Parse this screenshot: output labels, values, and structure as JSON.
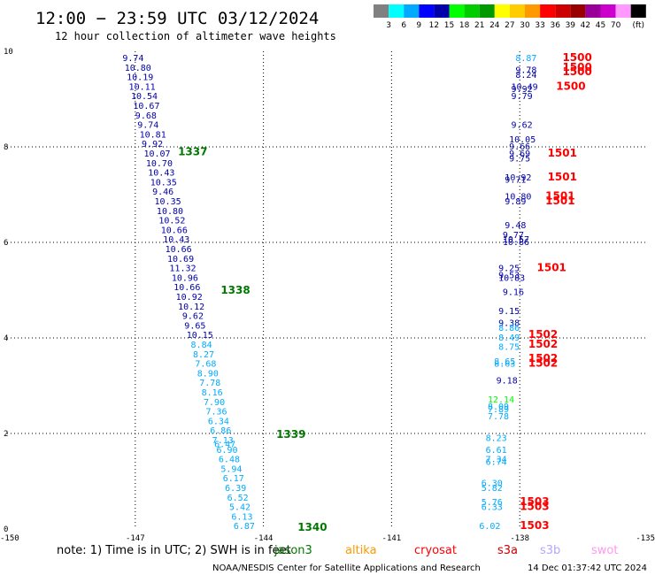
{
  "header": {
    "title": "12:00 − 23:59 UTC 03/12/2024",
    "subtitle": "12 hour collection of altimeter wave heights"
  },
  "colorbar": {
    "colors": [
      "#808080",
      "#00ffff",
      "#00aaff",
      "#0000ff",
      "#0000aa",
      "#00ff00",
      "#00cc00",
      "#009900",
      "#ffff00",
      "#ffcc00",
      "#ff9900",
      "#ff0000",
      "#cc0000",
      "#990000",
      "#990099",
      "#cc00cc",
      "#ff99ff",
      "#000000"
    ],
    "labels": [
      "3",
      "6",
      "9",
      "12",
      "15",
      "18",
      "21",
      "24",
      "27",
      "30",
      "33",
      "36",
      "39",
      "42",
      "45",
      "70"
    ],
    "unit": "(ft)"
  },
  "footer": {
    "note": "note:  1) Time is in UTC; 2) SWH is in feet",
    "credit": "NOAA/NESDIS Center for Satellite Applications and Research",
    "timestamp": "14 Dec 01:37:42 UTC 2024"
  },
  "legend": [
    {
      "name": "jason3",
      "color": "#007700"
    },
    {
      "name": "altika",
      "color": "#ff9900"
    },
    {
      "name": "cryosat",
      "color": "#ff0000"
    },
    {
      "name": "s3a",
      "color": "#cc0000"
    },
    {
      "name": "s3b",
      "color": "#b3a6ff"
    },
    {
      "name": "swot",
      "color": "#ff99ee"
    }
  ],
  "chart_data": {
    "type": "scatter",
    "xlim": [
      -150,
      -135
    ],
    "ylim": [
      0,
      10
    ],
    "x_ticks": [
      "-150",
      "-147",
      "-144",
      "-141",
      "-138",
      "-135"
    ],
    "y_ticks": [
      "0",
      "2",
      "4",
      "6",
      "8",
      "10"
    ],
    "grid": true,
    "series": [
      {
        "name": "jason3",
        "pass_labels": [
          {
            "text": "1337",
            "x": -146.0,
            "y": 7.9
          },
          {
            "text": "1338",
            "x": -145.0,
            "y": 5.0
          },
          {
            "text": "1339",
            "x": -143.7,
            "y": 1.98
          },
          {
            "text": "1340",
            "x": -143.2,
            "y": 0.04
          }
        ],
        "points": [
          {
            "x": -147.3,
            "y": 9.87,
            "v": "9.74",
            "c": "#0000aa"
          },
          {
            "x": -147.25,
            "y": 9.67,
            "v": "10.80",
            "c": "#0000aa"
          },
          {
            "x": -147.2,
            "y": 9.47,
            "v": "10.19",
            "c": "#0000aa"
          },
          {
            "x": -147.15,
            "y": 9.27,
            "v": "10.11",
            "c": "#0000aa"
          },
          {
            "x": -147.1,
            "y": 9.07,
            "v": "10.54",
            "c": "#0000aa"
          },
          {
            "x": -147.05,
            "y": 8.87,
            "v": "10.67",
            "c": "#0000aa"
          },
          {
            "x": -147.0,
            "y": 8.67,
            "v": "9.68",
            "c": "#0000aa"
          },
          {
            "x": -146.95,
            "y": 8.47,
            "v": "9.74",
            "c": "#0000aa"
          },
          {
            "x": -146.9,
            "y": 8.27,
            "v": "10.81",
            "c": "#0000aa"
          },
          {
            "x": -146.85,
            "y": 8.07,
            "v": "9.92",
            "c": "#0000aa"
          },
          {
            "x": -146.8,
            "y": 7.87,
            "v": "10.07",
            "c": "#0000aa"
          },
          {
            "x": -146.75,
            "y": 7.67,
            "v": "10.70",
            "c": "#0000aa"
          },
          {
            "x": -146.7,
            "y": 7.47,
            "v": "10.43",
            "c": "#0000aa"
          },
          {
            "x": -146.65,
            "y": 7.27,
            "v": "10.35",
            "c": "#0000aa"
          },
          {
            "x": -146.6,
            "y": 7.07,
            "v": "9.46",
            "c": "#0000aa"
          },
          {
            "x": -146.55,
            "y": 6.87,
            "v": "10.35",
            "c": "#0000aa"
          },
          {
            "x": -146.5,
            "y": 6.67,
            "v": "10.80",
            "c": "#0000aa"
          },
          {
            "x": -146.45,
            "y": 6.47,
            "v": "10.52",
            "c": "#0000aa"
          },
          {
            "x": -146.4,
            "y": 6.27,
            "v": "10.66",
            "c": "#0000aa"
          },
          {
            "x": -146.35,
            "y": 6.07,
            "v": "10.43",
            "c": "#0000aa"
          },
          {
            "x": -146.3,
            "y": 5.87,
            "v": "10.66",
            "c": "#0000aa"
          },
          {
            "x": -146.25,
            "y": 5.67,
            "v": "10.69",
            "c": "#0000aa"
          },
          {
            "x": -146.2,
            "y": 5.47,
            "v": "11.32",
            "c": "#0000aa"
          },
          {
            "x": -146.15,
            "y": 5.27,
            "v": "10.96",
            "c": "#0000aa"
          },
          {
            "x": -146.1,
            "y": 5.07,
            "v": "10.66",
            "c": "#0000aa"
          },
          {
            "x": -146.05,
            "y": 4.87,
            "v": "10.92",
            "c": "#0000aa"
          },
          {
            "x": -146.0,
            "y": 4.67,
            "v": "10.12",
            "c": "#0000aa"
          },
          {
            "x": -145.9,
            "y": 4.47,
            "v": "9.62",
            "c": "#0000aa"
          },
          {
            "x": -145.85,
            "y": 4.27,
            "v": "9.65",
            "c": "#0000aa"
          },
          {
            "x": -145.8,
            "y": 4.07,
            "v": "10.15",
            "c": "#0000aa"
          },
          {
            "x": -145.7,
            "y": 3.87,
            "v": "8.84",
            "c": "#00aaff"
          },
          {
            "x": -145.65,
            "y": 3.67,
            "v": "8.27",
            "c": "#00aaff"
          },
          {
            "x": -145.6,
            "y": 3.47,
            "v": "7.68",
            "c": "#00aaff"
          },
          {
            "x": -145.55,
            "y": 3.27,
            "v": "8.90",
            "c": "#00aaff"
          },
          {
            "x": -145.5,
            "y": 3.07,
            "v": "7.78",
            "c": "#00aaff"
          },
          {
            "x": -145.45,
            "y": 2.87,
            "v": "8.16",
            "c": "#00aaff"
          },
          {
            "x": -145.4,
            "y": 2.67,
            "v": "7.90",
            "c": "#00aaff"
          },
          {
            "x": -145.35,
            "y": 2.47,
            "v": "7.36",
            "c": "#00aaff"
          },
          {
            "x": -145.3,
            "y": 2.27,
            "v": "6.34",
            "c": "#00aaff"
          },
          {
            "x": -145.25,
            "y": 2.07,
            "v": "6.86",
            "c": "#00aaff"
          },
          {
            "x": -145.2,
            "y": 1.87,
            "v": "7.13",
            "c": "#00aaff"
          },
          {
            "x": -145.15,
            "y": 1.79,
            "v": "6.47",
            "c": "#00aaff"
          },
          {
            "x": -145.1,
            "y": 1.67,
            "v": "6.90",
            "c": "#00aaff"
          },
          {
            "x": -145.05,
            "y": 1.47,
            "v": "6.48",
            "c": "#00aaff"
          },
          {
            "x": -145.0,
            "y": 1.27,
            "v": "5.94",
            "c": "#00aaff"
          },
          {
            "x": -144.95,
            "y": 1.07,
            "v": "6.17",
            "c": "#00aaff"
          },
          {
            "x": -144.9,
            "y": 0.87,
            "v": "6.39",
            "c": "#00aaff"
          },
          {
            "x": -144.85,
            "y": 0.67,
            "v": "6.52",
            "c": "#00aaff"
          },
          {
            "x": -144.8,
            "y": 0.47,
            "v": "5.42",
            "c": "#00aaff"
          },
          {
            "x": -144.75,
            "y": 0.27,
            "v": "6.13",
            "c": "#00aaff"
          },
          {
            "x": -144.7,
            "y": 0.07,
            "v": "6.87",
            "c": "#00aaff"
          }
        ]
      },
      {
        "name": "cryosat",
        "pass_labels": [
          {
            "text": "1500",
            "x": -137.0,
            "y": 9.87
          },
          {
            "text": "1500",
            "x": -137.0,
            "y": 9.67
          },
          {
            "text": "1500",
            "x": -137.0,
            "y": 9.57
          },
          {
            "text": "1500",
            "x": -137.15,
            "y": 9.27
          },
          {
            "text": "1501",
            "x": -137.35,
            "y": 7.87
          },
          {
            "text": "1501",
            "x": -137.35,
            "y": 7.37
          },
          {
            "text": "1501",
            "x": -137.4,
            "y": 6.97
          },
          {
            "text": "1501",
            "x": -137.4,
            "y": 6.87
          },
          {
            "text": "1501",
            "x": -137.6,
            "y": 5.47
          },
          {
            "text": "1502",
            "x": -137.8,
            "y": 4.07
          },
          {
            "text": "1502",
            "x": -137.8,
            "y": 3.87
          },
          {
            "text": "1502",
            "x": -137.8,
            "y": 3.57
          },
          {
            "text": "1502",
            "x": -137.8,
            "y": 3.47
          },
          {
            "text": "1503",
            "x": -138.0,
            "y": 0.57
          },
          {
            "text": "1503",
            "x": -138.0,
            "y": 0.47
          },
          {
            "text": "1503",
            "x": -138.0,
            "y": 0.07
          }
        ],
        "points": [
          {
            "x": -138.1,
            "y": 9.87,
            "v": "8.87",
            "c": "#00aaff"
          },
          {
            "x": -138.1,
            "y": 9.62,
            "v": "9.78",
            "c": "#0000aa"
          },
          {
            "x": -138.1,
            "y": 9.52,
            "v": "8.24",
            "c": "#0000aa"
          },
          {
            "x": -138.2,
            "y": 9.27,
            "v": "10.49",
            "c": "#0000aa"
          },
          {
            "x": -138.2,
            "y": 9.22,
            "v": "9.92",
            "c": "#0000aa"
          },
          {
            "x": -138.2,
            "y": 9.07,
            "v": "9.79",
            "c": "#0000aa"
          },
          {
            "x": -138.2,
            "y": 8.47,
            "v": "9.62",
            "c": "#0000aa"
          },
          {
            "x": -138.25,
            "y": 8.17,
            "v": "10.05",
            "c": "#0000aa"
          },
          {
            "x": -138.25,
            "y": 8.02,
            "v": "9.66",
            "c": "#0000aa"
          },
          {
            "x": -138.25,
            "y": 7.87,
            "v": "9.69",
            "c": "#0000aa"
          },
          {
            "x": -138.25,
            "y": 7.77,
            "v": "9.75",
            "c": "#0000aa"
          },
          {
            "x": -138.35,
            "y": 7.37,
            "v": "10.92",
            "c": "#0000aa"
          },
          {
            "x": -138.35,
            "y": 7.32,
            "v": "9.71",
            "c": "#0000aa"
          },
          {
            "x": -138.35,
            "y": 6.97,
            "v": "10.80",
            "c": "#0000aa"
          },
          {
            "x": -138.35,
            "y": 6.87,
            "v": "9.89",
            "c": "#0000aa"
          },
          {
            "x": -138.35,
            "y": 6.37,
            "v": "9.48",
            "c": "#0000aa"
          },
          {
            "x": -138.4,
            "y": 6.17,
            "v": "9.77",
            "c": "#0000aa"
          },
          {
            "x": -138.4,
            "y": 6.07,
            "v": "10.57",
            "c": "#0000aa"
          },
          {
            "x": -138.4,
            "y": 6.02,
            "v": "10.86",
            "c": "#0000aa"
          },
          {
            "x": -138.5,
            "y": 5.47,
            "v": "9.25",
            "c": "#0000aa"
          },
          {
            "x": -138.5,
            "y": 5.32,
            "v": "9.53",
            "c": "#0000aa"
          },
          {
            "x": -138.5,
            "y": 5.27,
            "v": "10.83",
            "c": "#0000aa"
          },
          {
            "x": -138.4,
            "y": 4.97,
            "v": "9.16",
            "c": "#0000aa"
          },
          {
            "x": -138.5,
            "y": 4.57,
            "v": "9.15",
            "c": "#0000aa"
          },
          {
            "x": -138.5,
            "y": 4.32,
            "v": "9.38",
            "c": "#0000aa"
          },
          {
            "x": -138.5,
            "y": 4.22,
            "v": "8.86",
            "c": "#00aaff"
          },
          {
            "x": -138.5,
            "y": 4.02,
            "v": "8.49",
            "c": "#00aaff"
          },
          {
            "x": -138.5,
            "y": 3.82,
            "v": "8.75",
            "c": "#00aaff"
          },
          {
            "x": -138.6,
            "y": 3.52,
            "v": "8.65",
            "c": "#00aaff"
          },
          {
            "x": -138.6,
            "y": 3.47,
            "v": "8.63",
            "c": "#00aaff"
          },
          {
            "x": -138.55,
            "y": 3.12,
            "v": "9.18",
            "c": "#0000aa"
          },
          {
            "x": -138.75,
            "y": 2.72,
            "v": "12.14",
            "c": "#00ff00"
          },
          {
            "x": -138.75,
            "y": 2.57,
            "v": "8.09",
            "c": "#00aaff"
          },
          {
            "x": -138.75,
            "y": 2.52,
            "v": "7.89",
            "c": "#00aaff"
          },
          {
            "x": -138.75,
            "y": 2.37,
            "v": "7.78",
            "c": "#00aaff"
          },
          {
            "x": -138.8,
            "y": 1.92,
            "v": "8.23",
            "c": "#00aaff"
          },
          {
            "x": -138.8,
            "y": 1.67,
            "v": "6.61",
            "c": "#00aaff"
          },
          {
            "x": -138.8,
            "y": 1.47,
            "v": "7.34",
            "c": "#00aaff"
          },
          {
            "x": -138.8,
            "y": 1.42,
            "v": "6.74",
            "c": "#00aaff"
          },
          {
            "x": -138.9,
            "y": 0.97,
            "v": "6.30",
            "c": "#00aaff"
          },
          {
            "x": -138.9,
            "y": 0.87,
            "v": "5.82",
            "c": "#00aaff"
          },
          {
            "x": -138.9,
            "y": 0.57,
            "v": "5.76",
            "c": "#00aaff"
          },
          {
            "x": -138.9,
            "y": 0.47,
            "v": "6.33",
            "c": "#00aaff"
          },
          {
            "x": -138.95,
            "y": 0.07,
            "v": "6.02",
            "c": "#00aaff"
          }
        ]
      }
    ]
  }
}
